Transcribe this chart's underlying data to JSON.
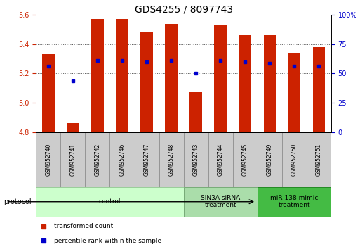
{
  "title": "GDS4255 / 8097743",
  "samples": [
    "GSM952740",
    "GSM952741",
    "GSM952742",
    "GSM952746",
    "GSM952747",
    "GSM952748",
    "GSM952743",
    "GSM952744",
    "GSM952745",
    "GSM952749",
    "GSM952750",
    "GSM952751"
  ],
  "bar_bottom": 4.8,
  "bar_tops": [
    5.33,
    4.86,
    5.57,
    5.57,
    5.48,
    5.54,
    5.07,
    5.53,
    5.46,
    5.46,
    5.34,
    5.38
  ],
  "percentile_values": [
    5.25,
    5.15,
    5.29,
    5.29,
    5.28,
    5.29,
    5.2,
    5.29,
    5.28,
    5.27,
    5.25,
    5.25
  ],
  "bar_color": "#cc2200",
  "percentile_color": "#0000cc",
  "ylim_left": [
    4.8,
    5.6
  ],
  "ylim_right": [
    0,
    100
  ],
  "yticks_left": [
    4.8,
    5.0,
    5.2,
    5.4,
    5.6
  ],
  "yticks_right": [
    0,
    25,
    50,
    75,
    100
  ],
  "ytick_labels_right": [
    "0",
    "25",
    "50",
    "75",
    "100%"
  ],
  "groups": [
    {
      "label": "control",
      "start": 0,
      "end": 6,
      "color": "#ccffcc",
      "edge_color": "#99cc99"
    },
    {
      "label": "SIN3A siRNA\ntreatment",
      "start": 6,
      "end": 9,
      "color": "#aaddaa",
      "edge_color": "#77aa77"
    },
    {
      "label": "miR-138 mimic\ntreatment",
      "start": 9,
      "end": 12,
      "color": "#44bb44",
      "edge_color": "#228822"
    }
  ],
  "protocol_label": "protocol",
  "legend_items": [
    {
      "label": "transformed count",
      "color": "#cc2200"
    },
    {
      "label": "percentile rank within the sample",
      "color": "#0000cc"
    }
  ],
  "title_fontsize": 10,
  "tick_fontsize": 7,
  "bar_width": 0.5,
  "sample_box_color": "#cccccc",
  "sample_box_edge": "#888888"
}
